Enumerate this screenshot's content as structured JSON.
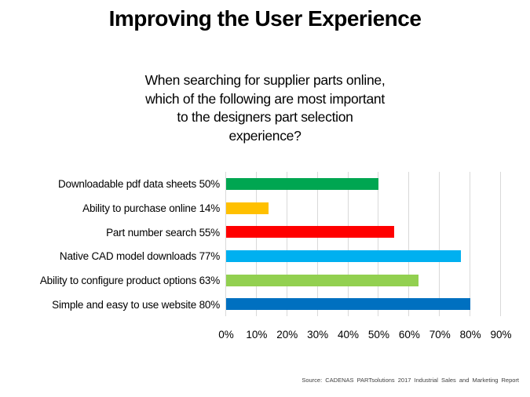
{
  "header": {
    "title": "Improving the User Experience",
    "subtitle_lines": [
      "When searching for supplier parts online,",
      "which of the following are most important",
      "to the designers part selection",
      "experience?"
    ]
  },
  "chart_data": {
    "type": "bar",
    "orientation": "horizontal",
    "title": "Improving the User Experience",
    "subtitle": "When searching for supplier parts online, which of the following are most important to the designers part selection experience?",
    "categories": [
      "Downloadable pdf data sheets",
      "Ability to purchase online",
      "Part number search",
      "Native CAD model downloads",
      "Ability to configure product options",
      "Simple and easy to use website"
    ],
    "values": [
      50,
      14,
      55,
      77,
      63,
      80
    ],
    "display_labels": [
      "Downloadable pdf data sheets 50%",
      "Ability to purchase online 14%",
      "Part number search 55%",
      "Native CAD model downloads 77%",
      "Ability to configure product options 63%",
      "Simple and easy to use website 80%"
    ],
    "colors": [
      "#00a651",
      "#ffc000",
      "#ff0000",
      "#00b0f0",
      "#92d050",
      "#0070c0"
    ],
    "x_ticks": [
      "0%",
      "10%",
      "20%",
      "30%",
      "40%",
      "50%",
      "60%",
      "70%",
      "80%",
      "90%"
    ],
    "xlim": [
      0,
      90
    ],
    "xlabel": "",
    "ylabel": "",
    "grid": "vertical-major",
    "gridline_color": "#d9d9d9",
    "legend": "none"
  },
  "footer": {
    "source": "Source:  CADENAS PARTsolutions 2017 Industrial Sales and Marketing Report"
  }
}
